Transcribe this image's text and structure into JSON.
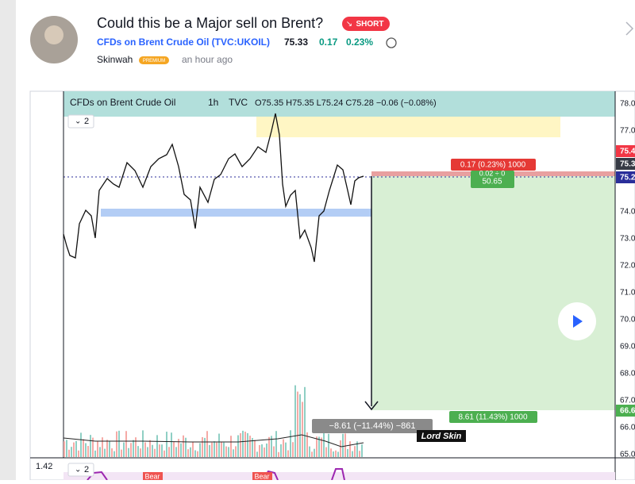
{
  "header": {
    "title": "Could this be a Major sell on Brent?",
    "badge": "SHORT",
    "symbol": "CFDs on Brent Crude Oil (TVC:UKOIL)",
    "price": "75.33",
    "change": "0.17",
    "change_pct": "0.23%",
    "author": "Skinwah",
    "author_badge": "PREMIUM",
    "time": "an hour ago"
  },
  "chart": {
    "legend": {
      "name": "CFDs on Brent Crude Oil",
      "interval": "1h",
      "source": "TVC",
      "ohlc": "O75.35 H75.35 L75.24 C75.28 −0.06 (−0.08%)"
    },
    "indicator_count": "2",
    "pane_count": "2",
    "pane_value": "1.42",
    "price_axis": [
      "78.0",
      "77.0",
      "74.0",
      "73.0",
      "72.0",
      "71.0",
      "70.0",
      "69.0",
      "68.0",
      "67.0",
      "66.0",
      "65.0"
    ],
    "axis_markers": [
      "75.4",
      "75.3",
      "75.2",
      "66.6"
    ],
    "target_label": "0.17 (0.23%) 1000",
    "entry_label": [
      "0.02 ÷ 0",
      "50.65"
    ],
    "stop_label": "8.61 (11.43%) 1000",
    "measure_label": "−8.61 (−11.44%) −861",
    "watermark": "Lord Skin",
    "signals": [
      "Bear",
      "Bear"
    ]
  }
}
